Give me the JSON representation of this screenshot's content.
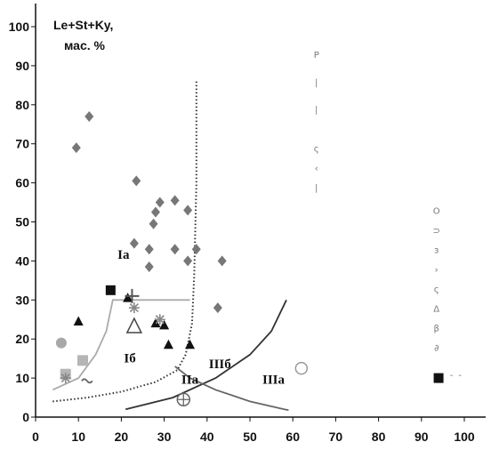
{
  "chart_data": {
    "type": "scatter",
    "title": "",
    "xlabel": "",
    "ylabel_lines": [
      "Le+St+Ky,",
      "мас. %"
    ],
    "xlim": [
      0,
      100
    ],
    "ylim": [
      0,
      100
    ],
    "x_ticks": [
      0,
      10,
      20,
      30,
      40,
      50,
      60,
      70,
      80,
      90,
      100
    ],
    "y_ticks": [
      0,
      10,
      20,
      30,
      40,
      50,
      60,
      70,
      80,
      90,
      100
    ],
    "grid": false,
    "region_labels": [
      {
        "text": "Ia",
        "x": 20.5,
        "y": 40.5
      },
      {
        "text": "Iб",
        "x": 22,
        "y": 14
      },
      {
        "text": "IIa",
        "x": 36,
        "y": 8.5
      },
      {
        "text": "IIIб",
        "x": 43,
        "y": 12.5
      },
      {
        "text": "IIIa",
        "x": 55.5,
        "y": 8.5
      }
    ],
    "series": [
      {
        "marker": "diamond",
        "color": "#777777",
        "points": [
          [
            9.5,
            69
          ],
          [
            12.5,
            77
          ],
          [
            23.5,
            60.5
          ],
          [
            23,
            44.5
          ],
          [
            26.5,
            38.5
          ],
          [
            26.5,
            43
          ],
          [
            27.5,
            49.5
          ],
          [
            28,
            52.5
          ],
          [
            29,
            55
          ],
          [
            32.5,
            55.5
          ],
          [
            32.5,
            43
          ],
          [
            35.5,
            53
          ],
          [
            35.5,
            40
          ],
          [
            37.5,
            43
          ],
          [
            43.5,
            40
          ],
          [
            42.5,
            28
          ]
        ]
      },
      {
        "marker": "triangle",
        "color": "#111111",
        "points": [
          [
            10,
            24.5
          ],
          [
            21.5,
            30.5
          ],
          [
            28,
            24
          ],
          [
            30,
            23.5
          ],
          [
            31,
            18.5
          ],
          [
            36,
            18.5
          ]
        ]
      },
      {
        "marker": "open-triangle",
        "color": "#444444",
        "points": [
          [
            23,
            23
          ]
        ]
      },
      {
        "marker": "square",
        "color": "#111111",
        "points": [
          [
            17.5,
            32.5
          ],
          [
            94,
            10
          ]
        ]
      },
      {
        "marker": "gray-square",
        "color": "#b5b5b5",
        "points": [
          [
            11,
            14.5
          ],
          [
            7,
            11
          ]
        ]
      },
      {
        "marker": "gray-circle",
        "color": "#a8a8a8",
        "points": [
          [
            6,
            19
          ]
        ]
      },
      {
        "marker": "open-circle",
        "color": "#999999",
        "points": [
          [
            62,
            12.5
          ]
        ]
      },
      {
        "marker": "circle-plus",
        "color": "#666666",
        "points": [
          [
            34.5,
            4.5
          ]
        ]
      },
      {
        "marker": "plus",
        "color": "#555555",
        "points": [
          [
            22.5,
            31
          ]
        ]
      },
      {
        "marker": "asterisk",
        "color": "#888888",
        "points": [
          [
            7,
            10
          ],
          [
            23,
            28
          ],
          [
            29,
            25
          ]
        ]
      },
      {
        "marker": "wave",
        "color": "#666666",
        "points": [
          [
            12,
            9.5
          ]
        ]
      }
    ],
    "boundaries": [
      {
        "style": "solid-gray",
        "color": "#aaaaaa",
        "points": [
          [
            4,
            7
          ],
          [
            10,
            10
          ],
          [
            14,
            16
          ],
          [
            16.5,
            22
          ],
          [
            18,
            30
          ],
          [
            36,
            30
          ]
        ]
      },
      {
        "style": "dotted",
        "color": "#333333",
        "points": [
          [
            4,
            4
          ],
          [
            12,
            5
          ],
          [
            20,
            6.5
          ],
          [
            28,
            9
          ],
          [
            33,
            12
          ],
          [
            35,
            16
          ],
          [
            36.5,
            24
          ],
          [
            37,
            36
          ],
          [
            37.5,
            60
          ],
          [
            37.5,
            86
          ]
        ]
      },
      {
        "style": "solid-dark",
        "color": "#333333",
        "points": [
          [
            21,
            2
          ],
          [
            32,
            5
          ],
          [
            42,
            10
          ],
          [
            50,
            16
          ],
          [
            55,
            22
          ],
          [
            58.5,
            30
          ]
        ]
      },
      {
        "style": "solid-gray",
        "color": "#666666",
        "points": [
          [
            32.5,
            13
          ],
          [
            36,
            10
          ],
          [
            42,
            7
          ],
          [
            50,
            4
          ],
          [
            58,
            2
          ],
          [
            59,
            1.8
          ]
        ]
      }
    ],
    "legend_fragments": [
      {
        "text": "Р",
        "x": 65.5,
        "y": 92
      },
      {
        "text": "|",
        "x": 65.5,
        "y": 85
      },
      {
        "text": "|",
        "x": 65.5,
        "y": 78
      },
      {
        "text": "ς",
        "x": 65.5,
        "y": 68
      },
      {
        "text": "‹",
        "x": 65.5,
        "y": 63
      },
      {
        "text": "|",
        "x": 65.5,
        "y": 58
      },
      {
        "text": "О",
        "x": 93.5,
        "y": 52
      },
      {
        "text": "⊃",
        "x": 93.5,
        "y": 47
      },
      {
        "text": "ɜ",
        "x": 93.5,
        "y": 42
      },
      {
        "text": "›",
        "x": 93.5,
        "y": 37
      },
      {
        "text": "ς",
        "x": 93.5,
        "y": 32
      },
      {
        "text": "Δ",
        "x": 93.5,
        "y": 27
      },
      {
        "text": "β",
        "x": 93.5,
        "y": 22
      },
      {
        "text": "∂",
        "x": 93.5,
        "y": 17
      },
      {
        "text": "-",
        "x": 97,
        "y": 10
      },
      {
        "text": "-",
        "x": 99,
        "y": 10
      }
    ]
  }
}
